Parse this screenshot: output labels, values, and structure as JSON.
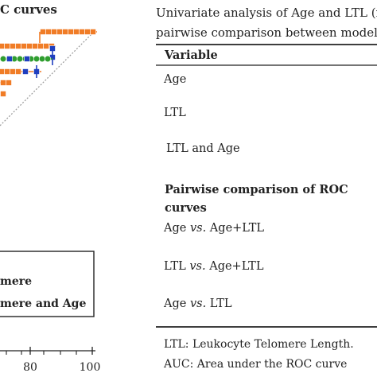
{
  "plot": {
    "title_fragment": "C curves",
    "legend": {
      "entries": [
        "mere",
        "mere and Age"
      ]
    },
    "x_ticks": [
      "80",
      "100"
    ]
  },
  "table": {
    "title_line1": "Univariate analysis of Age and LTL (n",
    "title_line2": "pairwise comparison between models",
    "header": "Variable",
    "rows": [
      {
        "text": "Age",
        "style": "normal"
      },
      {
        "text": "LTL",
        "style": "normal"
      },
      {
        "text": "LTL and Age",
        "style": "normal"
      },
      {
        "text": "Pairwise comparison of ROC",
        "style": "bold"
      },
      {
        "text": "curves",
        "style": "bold"
      },
      {
        "text_a": "Age ",
        "text_vs": "vs.",
        "text_b": " Age+LTL",
        "style": "vs"
      },
      {
        "text_a": "LTL ",
        "text_vs": "vs.",
        "text_b": " Age+LTL",
        "style": "vs"
      },
      {
        "text_a": "Age ",
        "text_vs": "vs.",
        "text_b": " LTL",
        "style": "vs"
      }
    ],
    "footnotes": [
      "LTL: Leukocyte Telomere Length.",
      "AUC: Area under the ROC curve"
    ]
  },
  "colors": {
    "orange": "#f07c26",
    "green": "#2f9e2f",
    "blue": "#1f3fbf",
    "text": "#222222",
    "diagonal": "#999999"
  }
}
